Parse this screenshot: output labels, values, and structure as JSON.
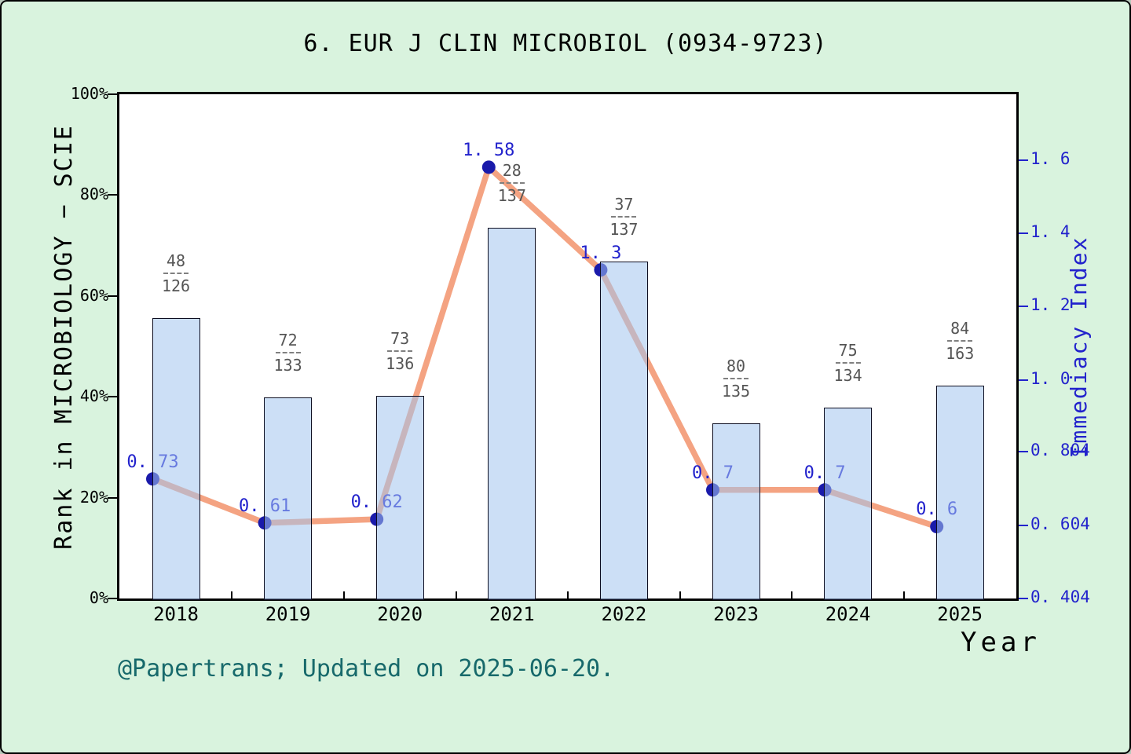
{
  "title": "6. EUR J CLIN MICROBIOL (0934-9723)",
  "footer": "@Papertrans; Updated on 2025-06-20.",
  "footer_color": "#17696b",
  "xlabel": "Year",
  "left_axis": {
    "label": "Rank in MICROBIOLOGY − SCIE",
    "color": "#000000"
  },
  "right_axis": {
    "label": "Immediacy Index",
    "color": "#2222cc"
  },
  "chart_data": {
    "type": "bar+line",
    "categories": [
      "2018",
      "2019",
      "2020",
      "2021",
      "2022",
      "2023",
      "2024",
      "2025"
    ],
    "bar_series": {
      "name": "Rank in MICROBIOLOGY - SCIE",
      "unit": "percent",
      "values": [
        55.6,
        39.9,
        40.2,
        73.5,
        66.8,
        34.7,
        37.9,
        42.2
      ],
      "fractions": [
        {
          "num": "48",
          "den": "126"
        },
        {
          "num": "72",
          "den": "133"
        },
        {
          "num": "73",
          "den": "136"
        },
        {
          "num": "28",
          "den": "137"
        },
        {
          "num": "37",
          "den": "137"
        },
        {
          "num": "80",
          "den": "135"
        },
        {
          "num": "75",
          "den": "134"
        },
        {
          "num": "84",
          "den": "163"
        }
      ],
      "fill_color": "rgba(163,197,239,0.55)",
      "border_color": "#0d0d20"
    },
    "line_series": {
      "name": "Immediacy Index",
      "values": [
        0.73,
        0.61,
        0.62,
        1.58,
        1.3,
        0.7,
        0.7,
        0.6
      ],
      "point_labels": [
        "0. 73",
        "0. 61",
        "0. 62",
        "1. 58",
        "1. 3",
        "0. 7",
        "0. 7",
        "0. 6"
      ],
      "line_color": "#f4a382",
      "marker_color": "#1a1aaa",
      "label_color": "#2121cc"
    },
    "left_axis_ticks": [
      {
        "label": "100%",
        "value": 100
      },
      {
        "label": "80%",
        "value": 80
      },
      {
        "label": "60%",
        "value": 60
      },
      {
        "label": "40%",
        "value": 40
      },
      {
        "label": "20%",
        "value": 20
      },
      {
        "label": "0%",
        "value": 0
      }
    ],
    "right_axis_ticks": [
      {
        "label": "1. 6",
        "value": 1.6
      },
      {
        "label": "1. 4",
        "value": 1.4
      },
      {
        "label": "1. 2",
        "value": 1.2
      },
      {
        "label": "1. 0",
        "value": 1.0
      },
      {
        "label": "0. 804",
        "value": 0.804
      },
      {
        "label": "0. 604",
        "value": 0.604
      },
      {
        "label": "0. 404",
        "value": 0.404
      }
    ],
    "left_axis_range": [
      0,
      100
    ],
    "right_axis_range": [
      0.404,
      1.779
    ],
    "grid": false,
    "legend": false
  }
}
